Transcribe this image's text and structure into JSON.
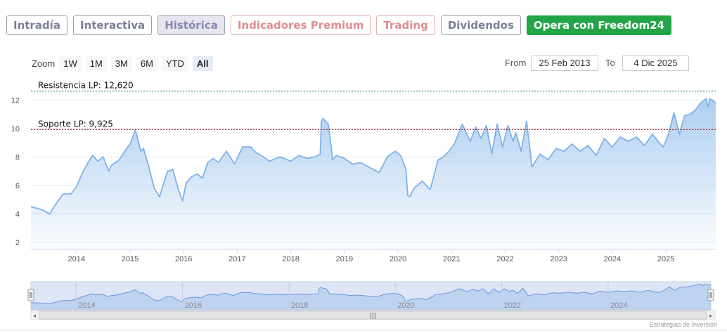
{
  "tabs": [
    {
      "label": "Intradía",
      "style": "normal"
    },
    {
      "label": "Interactiva",
      "style": "normal"
    },
    {
      "label": "Histórica",
      "style": "active"
    },
    {
      "label": "Indicadores Premium",
      "style": "premium"
    },
    {
      "label": "Trading",
      "style": "premium"
    },
    {
      "label": "Dividendos",
      "style": "normal"
    },
    {
      "label": "Opera con Freedom24",
      "style": "cta"
    }
  ],
  "zoom": {
    "label": "Zoom",
    "buttons": [
      "1W",
      "1M",
      "3M",
      "6M",
      "YTD",
      "All"
    ],
    "selected": "All"
  },
  "range": {
    "from_label": "From",
    "from_value": "25 Feb 2013",
    "to_label": "To",
    "to_value": "4 Dic 2025"
  },
  "credit": "Estrategias de Inversión",
  "colors": {
    "line": "#7fb2e8",
    "fill": "#a9cbf0",
    "resistance": "#1c7c3c",
    "support": "#a01c2c"
  },
  "chart_data": {
    "type": "area",
    "title": "",
    "xlabel": "",
    "ylabel": "",
    "ylim": [
      1.5,
      13.2
    ],
    "yticks": [
      2,
      4,
      6,
      8,
      10,
      12
    ],
    "xlim": [
      2013.15,
      2025.93
    ],
    "xticks": [
      "2014",
      "2015",
      "2016",
      "2017",
      "2018",
      "2019",
      "2020",
      "2021",
      "2022",
      "2023",
      "2024",
      "2025"
    ],
    "navigator_ticks": [
      "2014",
      "2016",
      "2018",
      "2020",
      "2022",
      "2024"
    ],
    "grid": "horizontal",
    "reference_lines": [
      {
        "label": "Resistencia LP: 12,620",
        "value": 12.62
      },
      {
        "label": "Soporte LP: 9,925",
        "value": 9.925
      }
    ],
    "series": [
      {
        "x": [
          2013.15,
          2013.35,
          2013.5,
          2013.6,
          2013.75,
          2013.9,
          2014.0,
          2014.1,
          2014.2,
          2014.3,
          2014.4,
          2014.5,
          2014.6,
          2014.65,
          2014.8,
          2014.9,
          2015.0,
          2015.1,
          2015.2,
          2015.25,
          2015.35,
          2015.45,
          2015.55,
          2015.7,
          2015.8,
          2015.9,
          2015.98,
          2016.05,
          2016.15,
          2016.25,
          2016.35,
          2016.45,
          2016.55,
          2016.65,
          2016.8,
          2016.95,
          2017.1,
          2017.25,
          2017.35,
          2017.45,
          2017.6,
          2017.8,
          2018.0,
          2018.15,
          2018.3,
          2018.45,
          2018.55,
          2018.57,
          2018.6,
          2018.7,
          2018.78,
          2018.85,
          2019.0,
          2019.15,
          2019.3,
          2019.45,
          2019.65,
          2019.8,
          2019.95,
          2020.05,
          2020.15,
          2020.18,
          2020.22,
          2020.3,
          2020.45,
          2020.6,
          2020.75,
          2020.85,
          2020.95,
          2021.05,
          2021.2,
          2021.35,
          2021.45,
          2021.55,
          2021.65,
          2021.75,
          2021.85,
          2021.95,
          2022.05,
          2022.15,
          2022.2,
          2022.3,
          2022.4,
          2022.5,
          2022.65,
          2022.8,
          2022.95,
          2023.1,
          2023.25,
          2023.4,
          2023.55,
          2023.7,
          2023.85,
          2024.0,
          2024.15,
          2024.3,
          2024.45,
          2024.6,
          2024.75,
          2024.85,
          2024.95,
          2025.05,
          2025.15,
          2025.25,
          2025.35,
          2025.45,
          2025.55,
          2025.65,
          2025.75,
          2025.78,
          2025.82,
          2025.93
        ],
        "y": [
          4.5,
          4.3,
          4.0,
          4.6,
          5.4,
          5.4,
          5.9,
          6.8,
          7.5,
          8.1,
          7.7,
          8.0,
          7.0,
          7.4,
          7.8,
          8.4,
          8.9,
          9.9,
          8.4,
          8.6,
          7.3,
          5.8,
          5.2,
          7.0,
          7.1,
          5.7,
          4.9,
          6.2,
          6.6,
          6.8,
          6.5,
          7.6,
          7.9,
          7.6,
          8.4,
          7.5,
          8.7,
          8.7,
          8.3,
          8.1,
          7.7,
          8.0,
          7.7,
          8.1,
          7.9,
          8.0,
          8.2,
          10.5,
          10.7,
          10.3,
          7.8,
          8.1,
          7.9,
          7.5,
          7.6,
          7.3,
          6.9,
          8.0,
          8.4,
          8.1,
          7.1,
          5.3,
          5.2,
          5.8,
          6.3,
          5.7,
          7.8,
          8.0,
          8.4,
          8.9,
          10.3,
          9.1,
          10.1,
          9.3,
          10.2,
          8.2,
          10.3,
          8.7,
          10.2,
          9.1,
          9.7,
          8.4,
          10.5,
          7.3,
          8.2,
          7.8,
          8.6,
          8.4,
          8.9,
          8.4,
          8.8,
          8.1,
          9.3,
          8.7,
          9.4,
          9.1,
          9.4,
          8.8,
          9.6,
          9.1,
          8.7,
          9.6,
          11.1,
          9.6,
          10.9,
          11.0,
          11.3,
          11.8,
          12.1,
          11.5,
          12.1,
          11.8
        ]
      }
    ]
  }
}
